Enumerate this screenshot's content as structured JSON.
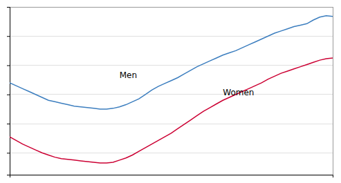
{
  "chart_data": {
    "type": "line",
    "x": [
      1960,
      1961,
      1962,
      1963,
      1964,
      1965,
      1966,
      1967,
      1968,
      1969,
      1970,
      1971,
      1972,
      1973,
      1974,
      1975,
      1976,
      1977,
      1978,
      1979,
      1980,
      1981,
      1982,
      1983,
      1984,
      1985,
      1986,
      1987,
      1988,
      1989,
      1990,
      1991,
      1992,
      1993,
      1994,
      1995,
      1996,
      1997,
      1998,
      1999,
      2000,
      2001,
      2002,
      2003,
      2004,
      2005,
      2006,
      2007,
      2008,
      2009,
      2010
    ],
    "series": [
      {
        "color": "#3c7ebf",
        "values": [
          26.8,
          26.6,
          26.4,
          26.2,
          26.0,
          25.8,
          25.6,
          25.5,
          25.4,
          25.3,
          25.2,
          25.15,
          25.1,
          25.05,
          25.0,
          25.0,
          25.05,
          25.15,
          25.3,
          25.5,
          25.7,
          26.0,
          26.3,
          26.55,
          26.75,
          26.95,
          27.15,
          27.4,
          27.65,
          27.9,
          28.1,
          28.3,
          28.5,
          28.7,
          28.85,
          29.0,
          29.2,
          29.4,
          29.6,
          29.8,
          30.0,
          30.2,
          30.35,
          30.5,
          30.65,
          30.75,
          30.85,
          31.1,
          31.3,
          31.4,
          31.35
        ]
      },
      {
        "color": "#cc0033",
        "values": [
          23.1,
          22.85,
          22.6,
          22.4,
          22.2,
          22.0,
          21.85,
          21.7,
          21.6,
          21.55,
          21.5,
          21.45,
          21.4,
          21.35,
          21.3,
          21.3,
          21.35,
          21.5,
          21.65,
          21.85,
          22.1,
          22.35,
          22.6,
          22.85,
          23.1,
          23.35,
          23.65,
          23.95,
          24.25,
          24.55,
          24.85,
          25.1,
          25.35,
          25.6,
          25.8,
          26.0,
          26.2,
          26.4,
          26.6,
          26.8,
          27.05,
          27.25,
          27.45,
          27.6,
          27.75,
          27.9,
          28.05,
          28.2,
          28.35,
          28.45,
          28.5
        ]
      }
    ],
    "annotations": [
      {
        "text": "Men",
        "x": 1977,
        "y": 27.3
      },
      {
        "text": "Women",
        "x": 1993,
        "y": 26.1
      }
    ],
    "xlim": [
      1960,
      2010
    ],
    "xticks": [],
    "ylim": [
      20.5,
      32.0
    ],
    "yticks": [
      22,
      24,
      26,
      28,
      30,
      32
    ],
    "grid": true,
    "tick_labels": false
  }
}
